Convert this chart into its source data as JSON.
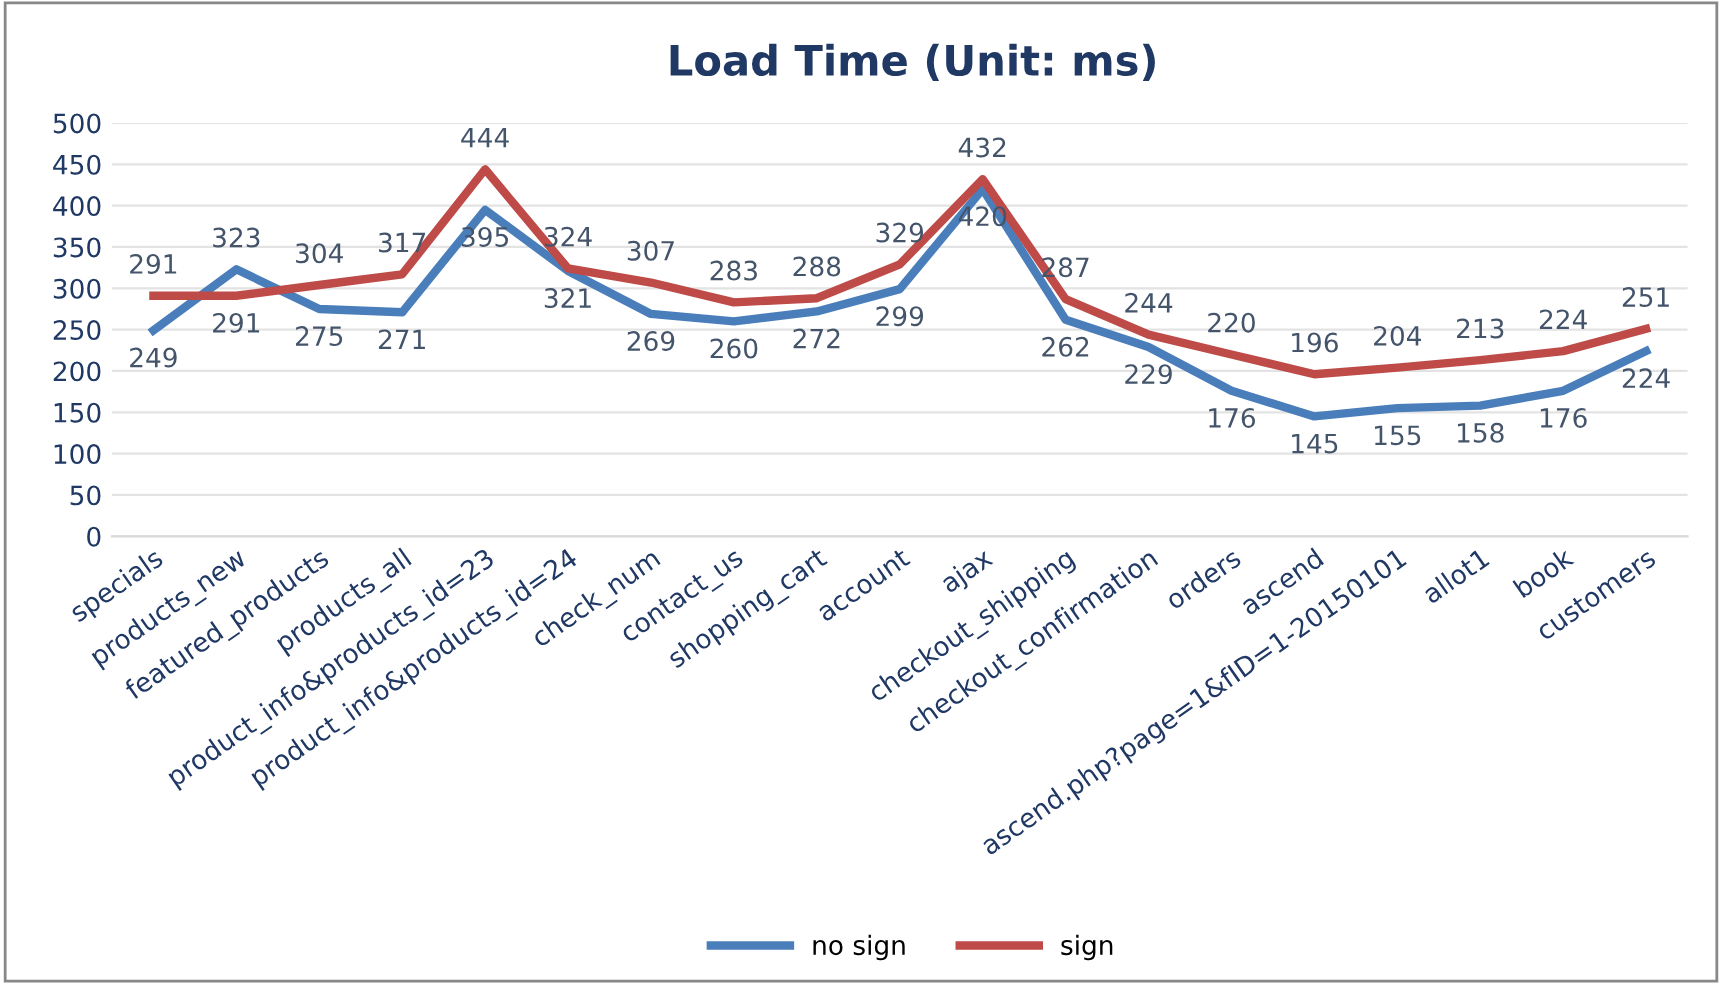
{
  "chart_data": {
    "type": "line",
    "title": "Load Time (Unit: ms)",
    "categories": [
      "specials",
      "products_new",
      "featured_products",
      "products_all",
      "product_info&products_id=23",
      "product_info&products_id=24",
      "check_num",
      "contact_us",
      "shopping_cart",
      "account",
      "ajax",
      "checkout_shipping",
      "checkout_confirmation",
      "orders",
      "ascend",
      "ascend.php?page=1&fID=1-20150101",
      "allot1",
      "book",
      "customers"
    ],
    "series": [
      {
        "name": "no sign",
        "color": "#4a7ebb",
        "values": [
          249,
          323,
          275,
          271,
          395,
          321,
          269,
          260,
          272,
          299,
          420,
          262,
          229,
          176,
          145,
          155,
          158,
          176,
          224
        ]
      },
      {
        "name": "sign",
        "color": "#be4b48",
        "values": [
          291,
          291,
          304,
          317,
          444,
          324,
          307,
          283,
          288,
          329,
          432,
          287,
          244,
          220,
          196,
          204,
          213,
          224,
          251
        ]
      }
    ],
    "ylim": [
      0,
      500
    ],
    "yticks": [
      0,
      50,
      100,
      150,
      200,
      250,
      300,
      350,
      400,
      450,
      500
    ],
    "grid": "y",
    "legend": "bottom",
    "marker": "none",
    "line_style": "solid",
    "data_labels": true
  }
}
